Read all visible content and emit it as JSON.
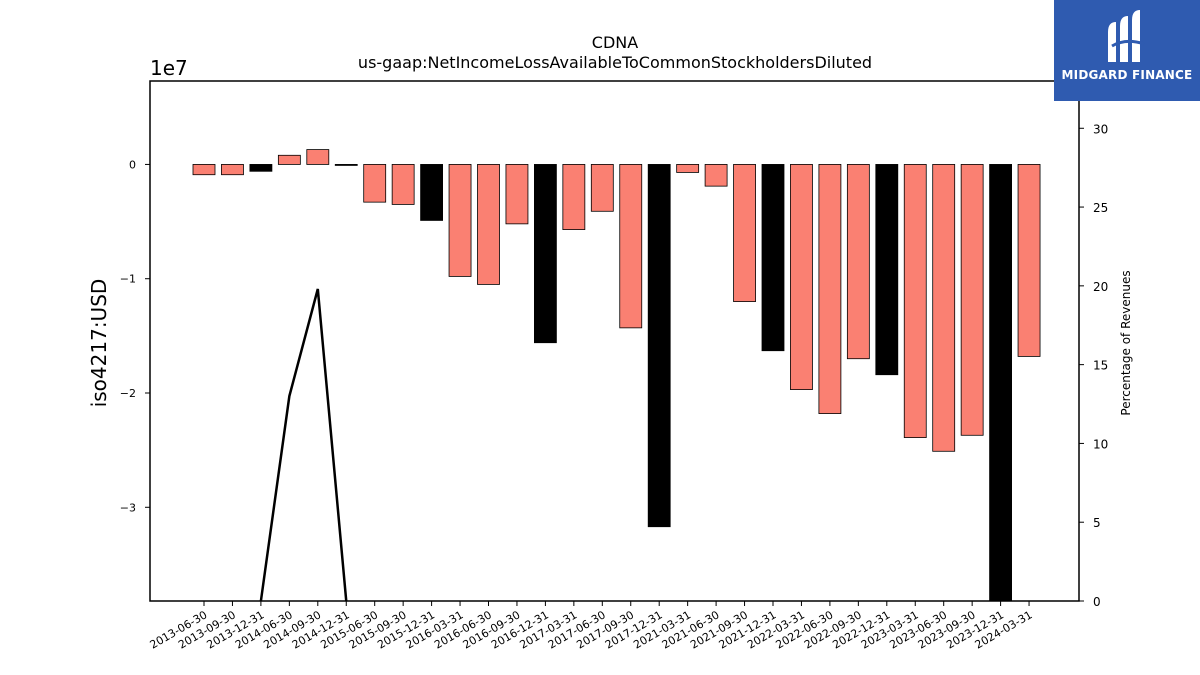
{
  "chart_data": {
    "type": "bar",
    "title": "CDNA",
    "subtitle": "us-gaap:NetIncomeLossAvailableToCommonStockholdersDiluted",
    "ylabel": "iso4217:USD",
    "y2label": "Percentage of Revenues",
    "y_exponent_label": "1e7",
    "ylim": [
      -3.82,
      0.73
    ],
    "y2lim": [
      0,
      33
    ],
    "yticks": [
      0,
      -1,
      -2,
      -3
    ],
    "y2ticks": [
      0,
      5,
      10,
      15,
      20,
      25,
      30
    ],
    "categories": [
      "2013-06-30",
      "2013-09-30",
      "2013-12-31",
      "2014-06-30",
      "2014-09-30",
      "2014-12-31",
      "2015-06-30",
      "2015-09-30",
      "2015-12-31",
      "2016-03-31",
      "2016-06-30",
      "2016-09-30",
      "2016-12-31",
      "2017-03-31",
      "2017-06-30",
      "2017-09-30",
      "2017-12-31",
      "2021-03-31",
      "2021-06-30",
      "2021-09-30",
      "2021-12-31",
      "2022-03-31",
      "2022-06-30",
      "2022-09-30",
      "2022-12-31",
      "2023-03-31",
      "2023-06-30",
      "2023-09-30",
      "2023-12-31",
      "2024-03-31"
    ],
    "values": [
      -0.09,
      -0.09,
      -0.06,
      0.08,
      0.13,
      -0.005,
      -0.33,
      -0.35,
      -0.49,
      -0.98,
      -1.05,
      -0.52,
      -1.56,
      -0.57,
      -0.41,
      -1.43,
      -3.17,
      -0.07,
      -0.19,
      -1.2,
      -1.63,
      -1.97,
      -2.18,
      -1.7,
      -1.84,
      -2.39,
      -2.51,
      -2.37,
      -3.82,
      -1.68
    ],
    "bar_colors": [
      "#fa8072",
      "#fa8072",
      "#000000",
      "#fa8072",
      "#fa8072",
      "#000000",
      "#fa8072",
      "#fa8072",
      "#000000",
      "#fa8072",
      "#fa8072",
      "#fa8072",
      "#000000",
      "#fa8072",
      "#fa8072",
      "#fa8072",
      "#000000",
      "#fa8072",
      "#fa8072",
      "#fa8072",
      "#000000",
      "#fa8072",
      "#fa8072",
      "#fa8072",
      "#000000",
      "#fa8072",
      "#fa8072",
      "#fa8072",
      "#000000",
      "#fa8072"
    ],
    "line_series": {
      "name": "Percentage of Revenues",
      "x_categories": [
        "2013-12-31",
        "2014-06-30",
        "2014-09-30",
        "2014-12-31"
      ],
      "values": [
        0,
        13,
        19.8,
        0
      ],
      "color": "#000000"
    },
    "grid": false
  },
  "logo": {
    "text": "MIDGARD FINANCE",
    "color": "#2f5bb0"
  }
}
